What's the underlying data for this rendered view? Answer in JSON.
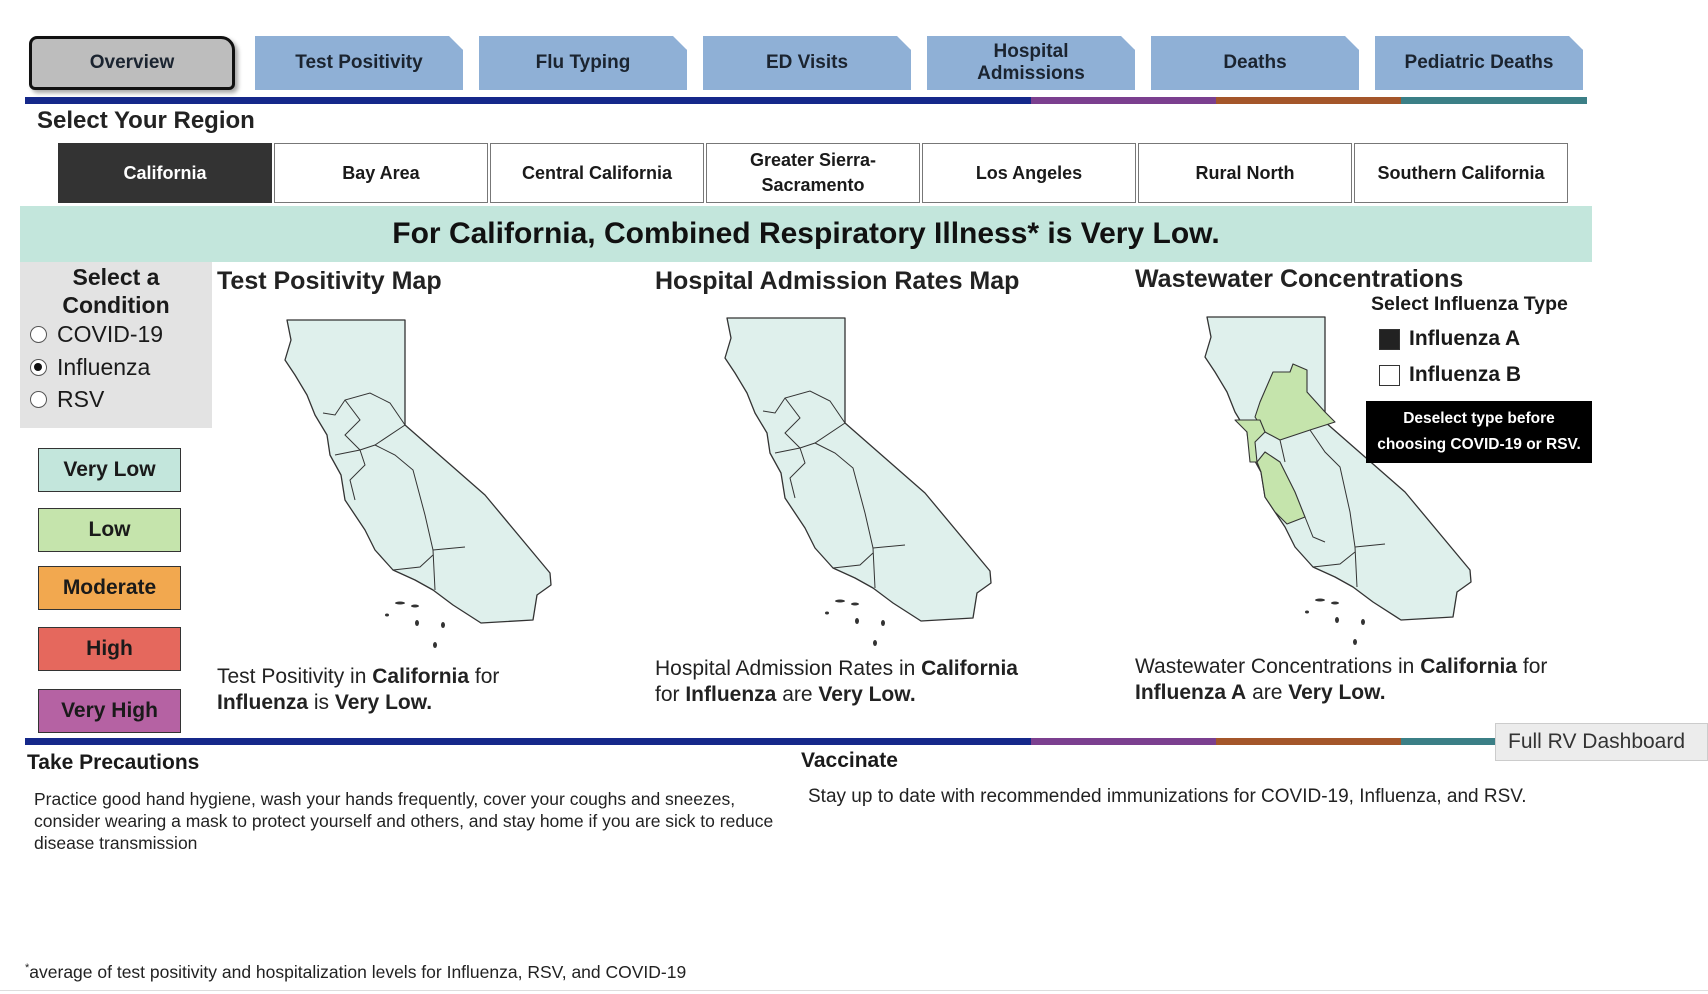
{
  "tabs": [
    {
      "label": "Overview",
      "active": true
    },
    {
      "label": "Test Positivity"
    },
    {
      "label": "Flu Typing"
    },
    {
      "label": "ED Visits"
    },
    {
      "label": "Hospital Admissions"
    },
    {
      "label": "Deaths"
    },
    {
      "label": "Pediatric Deaths"
    }
  ],
  "region_heading": "Select Your Region",
  "regions": [
    {
      "label": "California",
      "selected": true
    },
    {
      "label": "Bay Area"
    },
    {
      "label": "Central California"
    },
    {
      "label": "Greater Sierra-Sacramento"
    },
    {
      "label": "Los Angeles"
    },
    {
      "label": "Rural North"
    },
    {
      "label": "Southern California"
    }
  ],
  "banner": "For California, Combined Respiratory Illness* is Very Low.",
  "condition": {
    "heading": "Select a Condition",
    "options": [
      "COVID-19",
      "Influenza",
      "RSV"
    ],
    "selected": "Influenza"
  },
  "legend": [
    {
      "label": "Very Low",
      "color": "#c3e6dc"
    },
    {
      "label": "Low",
      "color": "#c5e4ac"
    },
    {
      "label": "Moderate",
      "color": "#f2a84f"
    },
    {
      "label": "High",
      "color": "#e5685d"
    },
    {
      "label": "Very High",
      "color": "#b562a3"
    }
  ],
  "maps": {
    "test_positivity": {
      "title": "Test Positivity Map",
      "caption_parts": [
        "Test Positivity in ",
        "California",
        " for ",
        "Influenza",
        " is ",
        "Very Low."
      ]
    },
    "hospital": {
      "title": "Hospital Admission Rates Map",
      "caption_parts": [
        "Hospital Admission Rates in ",
        "California",
        " for ",
        "Influenza",
        " are ",
        "Very Low."
      ]
    },
    "wastewater": {
      "title": "Wastewater Concentrations",
      "caption_parts": [
        "Wastewater Concentrations in ",
        "California",
        " for ",
        "Influenza A",
        " are ",
        "Very Low."
      ]
    }
  },
  "influenza_type": {
    "heading": "Select Influenza Type",
    "options": [
      {
        "label": "Influenza A",
        "checked": true
      },
      {
        "label": "Influenza B",
        "checked": false
      }
    ],
    "tooltip_line1": "Deselect type before",
    "tooltip_line2": "choosing COVID-19 or RSV."
  },
  "full_dashboard_button": "Full RV Dashboard",
  "precautions": {
    "heading": "Take Precautions",
    "text": "Practice good hand hygiene, wash your hands frequently, cover your coughs and sneezes, consider wearing a mask to protect yourself and others, and stay home if you are sick to reduce disease transmission"
  },
  "vaccinate": {
    "heading": "Vaccinate",
    "text": "Stay up to date with recommended immunizations for COVID-19, Influenza, and RSV."
  },
  "footnote_mark": "*",
  "footnote": "average of test positivity and hospitalization levels for Influenza, RSV, and COVID-19",
  "colors": {
    "map_fill": "#dff0ec",
    "map_low_fill": "#c5e4ac",
    "rainbow": [
      "#15288a",
      "#7b3f8f",
      "#a4562a",
      "#3b7f86"
    ]
  }
}
